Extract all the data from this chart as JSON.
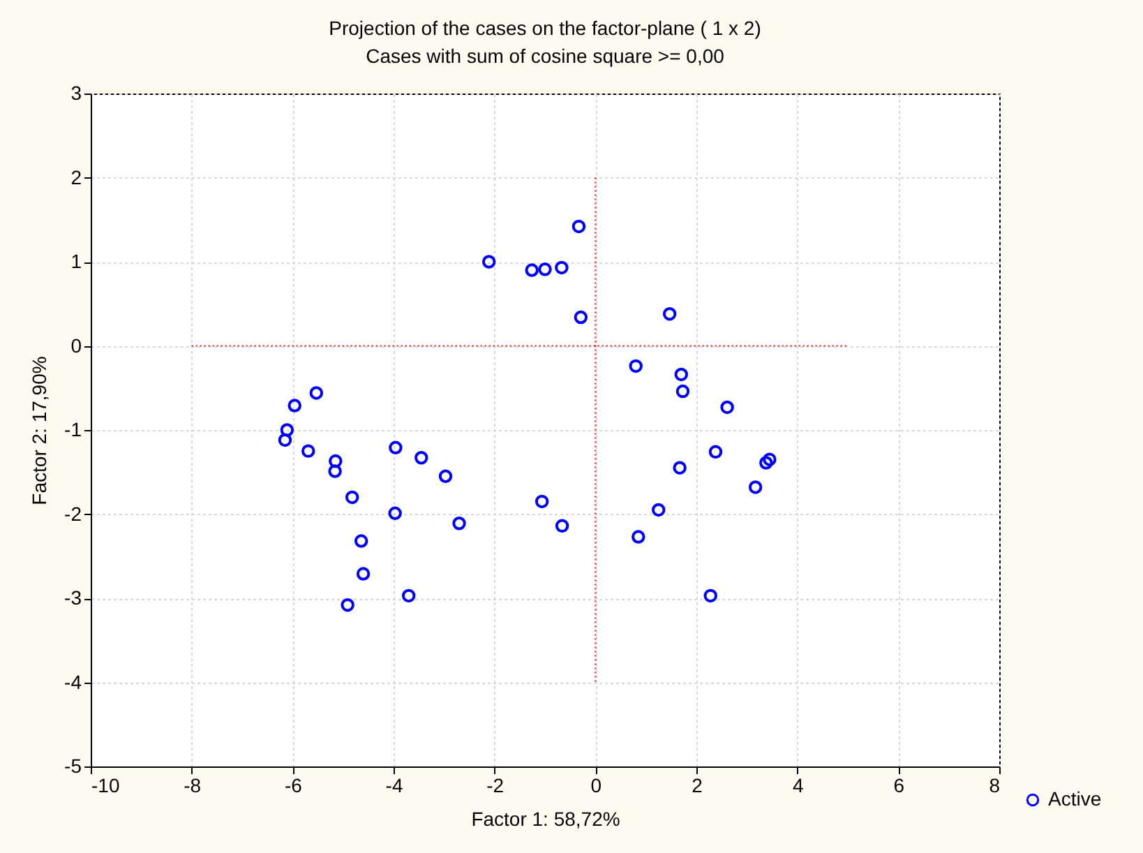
{
  "chart_data": {
    "type": "scatter",
    "title": "Projection of the cases on the factor-plane (  1 x   2)",
    "subtitle": "Cases with sum of cosine square >=  0,00",
    "xlabel": "Factor 1: 58,72%",
    "ylabel": "Factor 2: 17,90%",
    "xlim": [
      -10,
      8
    ],
    "xticks": [
      -10,
      -8,
      -6,
      -4,
      -2,
      0,
      2,
      4,
      6,
      8
    ],
    "ylim": [
      -5,
      3
    ],
    "yticks": [
      -5,
      -4,
      -3,
      -2,
      -1,
      0,
      1,
      2,
      3
    ],
    "grid": true,
    "legend": "bottom right",
    "marker": "circle",
    "series": [
      {
        "name": "Active",
        "color": "#0000ff",
        "x": [
          -2.11,
          -1.26,
          -1.0,
          -0.67,
          -0.33,
          -0.29,
          -5.53,
          -5.96,
          -6.11,
          -6.15,
          -5.69,
          -5.15,
          -5.16,
          -4.82,
          -3.96,
          -3.45,
          -2.97,
          -3.97,
          -2.7,
          -1.06,
          -0.66,
          -4.64,
          -4.6,
          -3.7,
          -4.91,
          1.47,
          0.8,
          1.7,
          1.73,
          2.61,
          2.38,
          3.45,
          3.38,
          3.17,
          1.67,
          1.25,
          0.85,
          2.28
        ],
        "values": [
          1.0,
          0.9,
          0.91,
          0.93,
          1.42,
          0.34,
          -0.56,
          -0.71,
          -1.0,
          -1.12,
          -1.25,
          -1.37,
          -1.49,
          -1.8,
          -1.21,
          -1.33,
          -1.55,
          -1.99,
          -2.11,
          -1.85,
          -2.14,
          -2.32,
          -2.71,
          -2.97,
          -3.08,
          0.38,
          -0.24,
          -0.34,
          -0.54,
          -0.73,
          -1.26,
          -1.35,
          -1.39,
          -1.68,
          -1.45,
          -1.95,
          -2.27,
          -2.97
        ]
      },
      {
        "type": "line",
        "color": "#ff0000",
        "line_style": "dotted",
        "marker": "none",
        "x": [
          -8,
          5
        ],
        "values": [
          0,
          0
        ]
      },
      {
        "type": "line",
        "color": "#ff0000",
        "line_style": "dotted",
        "marker": "none",
        "x": [
          0,
          0
        ],
        "values": [
          2,
          -4
        ]
      }
    ]
  }
}
